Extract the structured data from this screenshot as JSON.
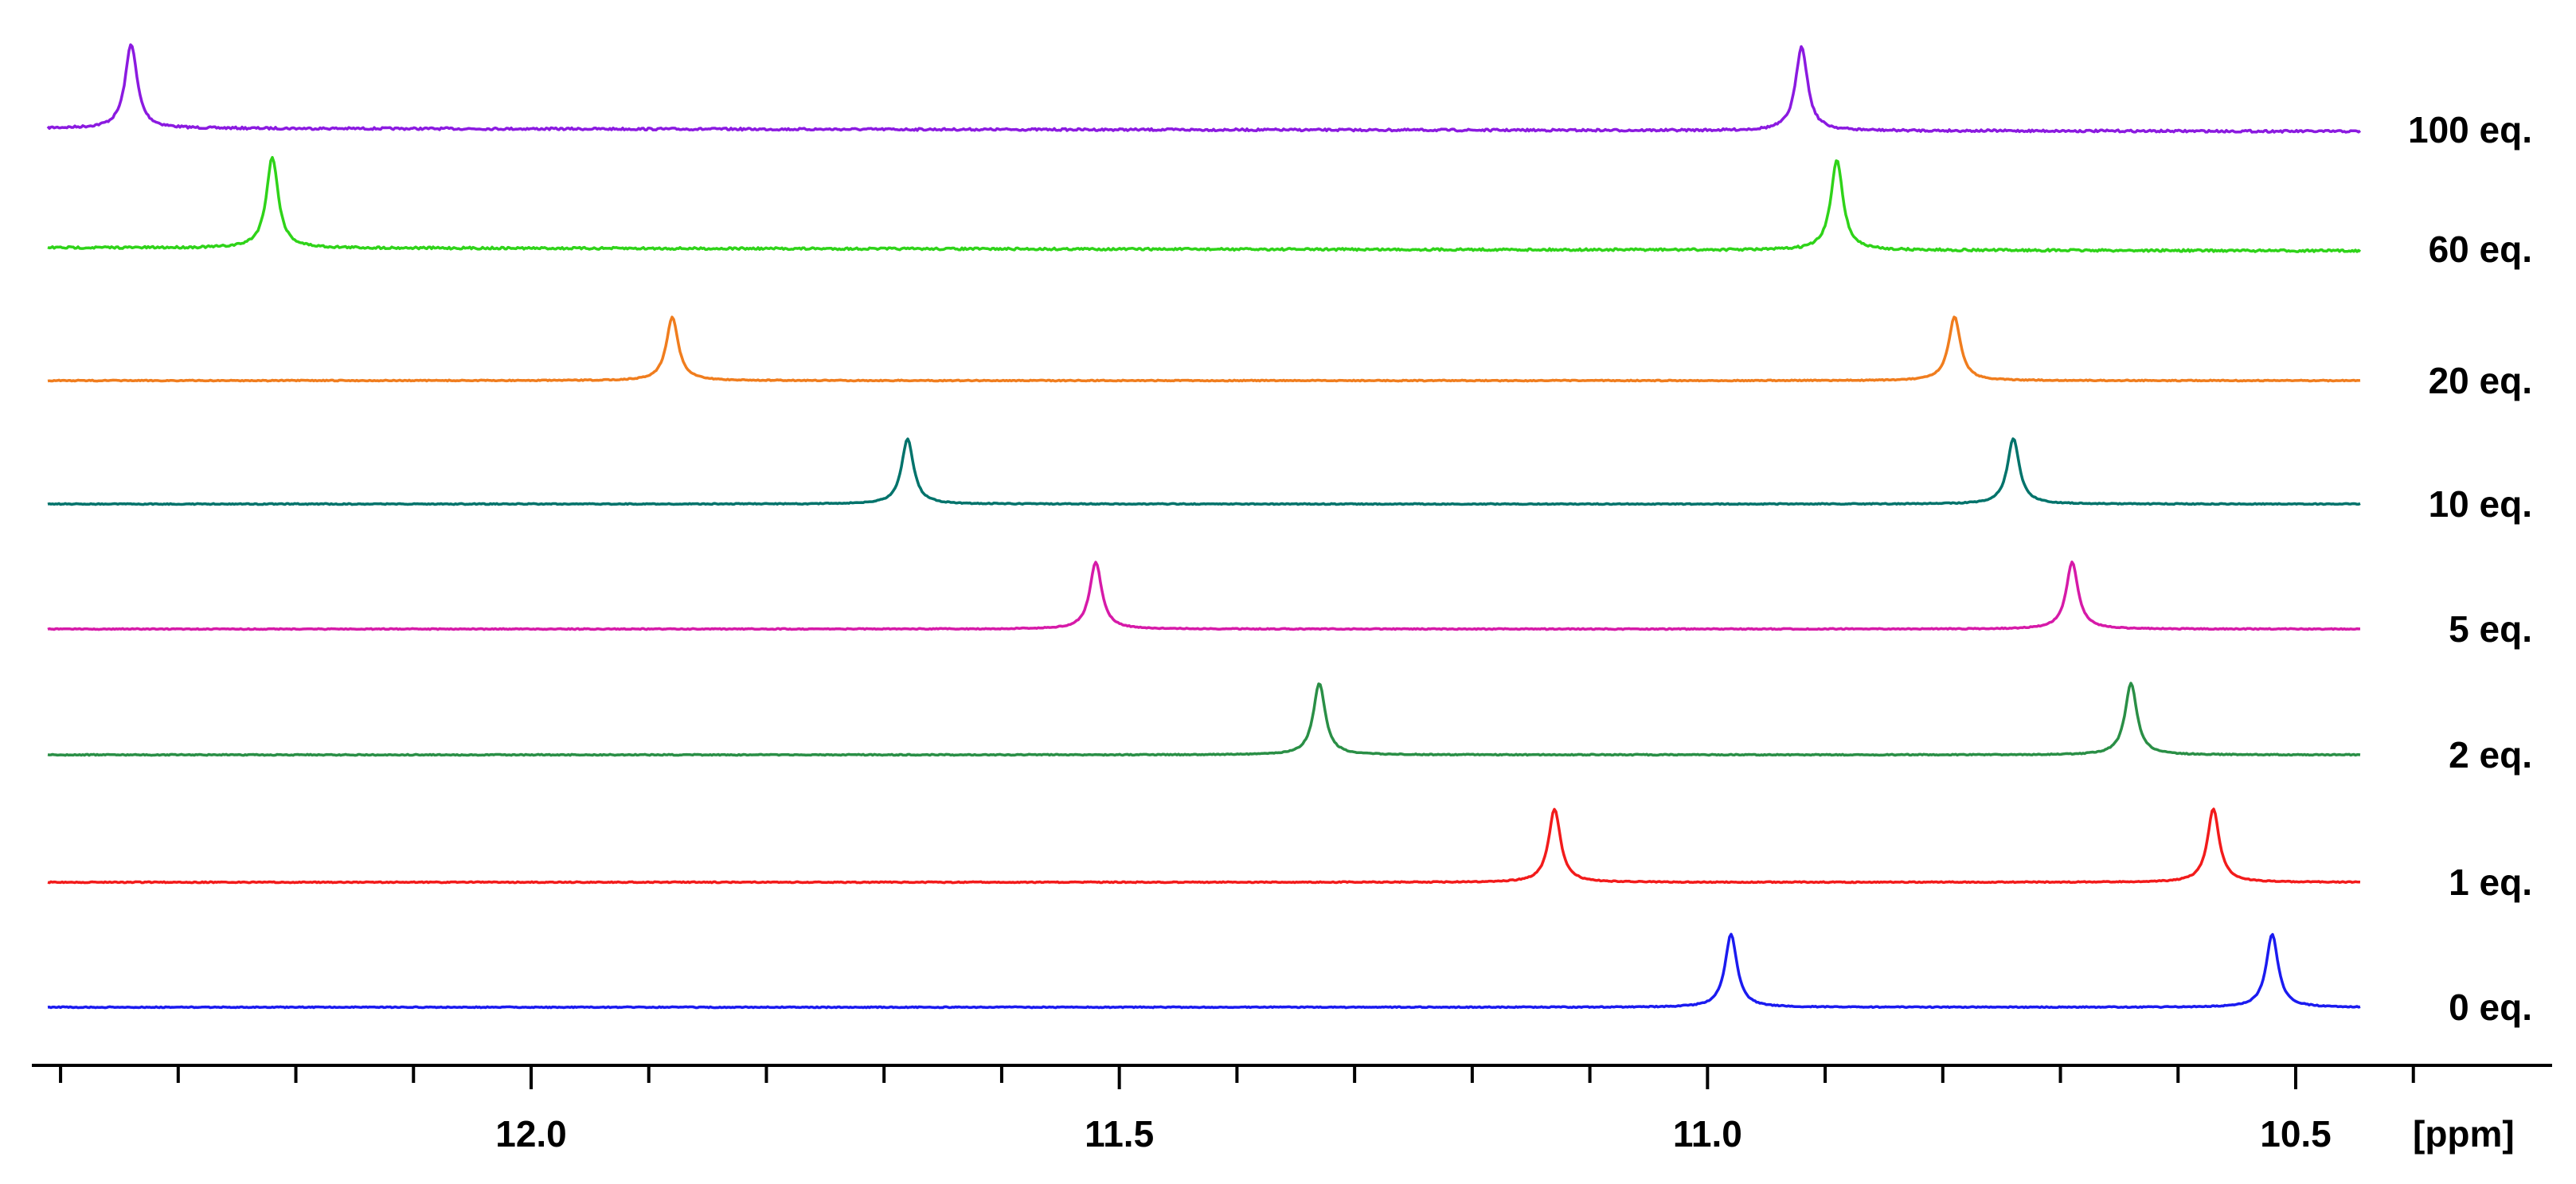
{
  "chart_data": {
    "type": "line",
    "title": "",
    "xlabel": "[ppm]",
    "ylabel": "",
    "x_reversed": true,
    "xlim": [
      12.485,
      10.4
    ],
    "major_ticks": [
      12.0,
      11.5,
      11.0,
      10.5
    ],
    "major_tick_labels": [
      "12.0",
      "11.5",
      "11.0",
      "10.5"
    ],
    "minor_tick_step": 0.1,
    "grid": false,
    "legend": "none",
    "series": [
      {
        "name": "100 eq.",
        "color": "#8b1ae0",
        "peaks_ppm": [
          12.34,
          10.92
        ]
      },
      {
        "name": "60 eq.",
        "color": "#2fd319",
        "peaks_ppm": [
          12.22,
          10.89
        ]
      },
      {
        "name": "20 eq.",
        "color": "#f07d1e",
        "peaks_ppm": [
          11.88,
          10.79
        ]
      },
      {
        "name": "10 eq.",
        "color": "#00736b",
        "peaks_ppm": [
          11.68,
          10.74
        ]
      },
      {
        "name": "5 eq.",
        "color": "#d61aa8",
        "peaks_ppm": [
          11.52,
          10.69
        ]
      },
      {
        "name": "2 eq.",
        "color": "#2a8f46",
        "peaks_ppm": [
          11.33,
          10.64
        ]
      },
      {
        "name": "1 eq.",
        "color": "#f21b1b",
        "peaks_ppm": [
          11.13,
          10.57
        ]
      },
      {
        "name": "0 eq.",
        "color": "#1b1bf0",
        "peaks_ppm": [
          10.98,
          10.52
        ]
      }
    ]
  }
}
